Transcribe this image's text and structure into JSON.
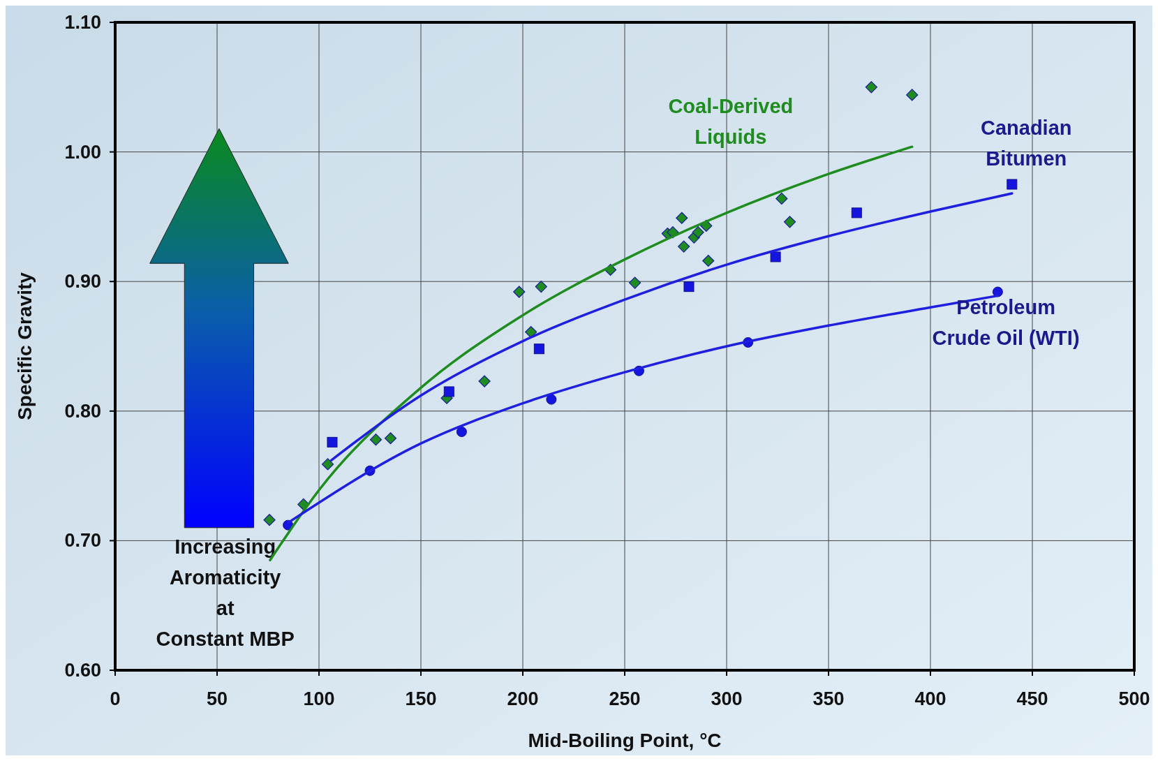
{
  "chart_data": {
    "type": "scatter",
    "xlabel": "Mid-Boiling Point, °C",
    "ylabel": "Specific Gravity",
    "xlim": [
      0,
      500
    ],
    "xticks": [
      0,
      50,
      100,
      150,
      200,
      250,
      300,
      350,
      400,
      450,
      500
    ],
    "ylim": [
      0.6,
      1.1
    ],
    "yticks": [
      {
        "value": 0.6,
        "label": "0.60"
      },
      {
        "value": 0.7,
        "label": "0.70"
      },
      {
        "value": 0.8,
        "label": "0.80"
      },
      {
        "value": 0.9,
        "label": "0.90"
      },
      {
        "value": 1.0,
        "label": "1.00"
      },
      {
        "value": 1.1,
        "label": "1.10"
      }
    ],
    "grid": true,
    "series": [
      {
        "name": "Coal-Derived Liquids",
        "marker": "diamond",
        "color": "#1e8c1e",
        "x": [
          75.7,
          92.4,
          104.3,
          127.9,
          135.1,
          162.7,
          181.2,
          198.2,
          204,
          209,
          243,
          255,
          271,
          273.6,
          278,
          279,
          284,
          286,
          290,
          291,
          327,
          331,
          371,
          391
        ],
        "values": [
          0.716,
          0.728,
          0.759,
          0.778,
          0.779,
          0.81,
          0.823,
          0.892,
          0.861,
          0.896,
          0.909,
          0.899,
          0.937,
          0.938,
          0.949,
          0.927,
          0.934,
          0.938,
          0.943,
          0.916,
          0.964,
          0.946,
          1.05,
          1.044
        ]
      },
      {
        "name": "Canadian Bitumen",
        "marker": "square",
        "color": "#1515e0",
        "x": [
          106.5,
          163.8,
          208,
          281.5,
          324,
          363.8,
          440
        ],
        "values": [
          0.776,
          0.815,
          0.848,
          0.896,
          0.919,
          0.953,
          0.975
        ]
      },
      {
        "name": "Petroleum Crude Oil (WTI)",
        "marker": "circle",
        "color": "#1515e0",
        "x": [
          84.8,
          125,
          170,
          214,
          257,
          310.5,
          433
        ],
        "values": [
          0.712,
          0.754,
          0.784,
          0.809,
          0.831,
          0.853,
          0.892
        ]
      },
      {
        "type": "line",
        "marker": "none",
        "color": "#1e8c1e",
        "x": [
          76,
          100,
          150,
          200,
          250,
          300,
          350,
          391
        ],
        "values": [
          0.685,
          0.739,
          0.818,
          0.874,
          0.917,
          0.953,
          0.983,
          1.004
        ]
      },
      {
        "type": "line",
        "marker": "none",
        "color": "#1f1fdf",
        "x": [
          106,
          150,
          200,
          250,
          300,
          350,
          400,
          440
        ],
        "values": [
          0.762,
          0.812,
          0.854,
          0.886,
          0.913,
          0.935,
          0.954,
          0.968
        ]
      },
      {
        "type": "line",
        "marker": "none",
        "color": "#1f1fdf",
        "x": [
          85,
          150,
          200,
          250,
          300,
          350,
          400,
          433
        ],
        "values": [
          0.714,
          0.775,
          0.806,
          0.83,
          0.85,
          0.866,
          0.88,
          0.889
        ]
      }
    ],
    "annotations": [
      "Increasing\nAromaticity\nat\nConstant MBP"
    ]
  }
}
